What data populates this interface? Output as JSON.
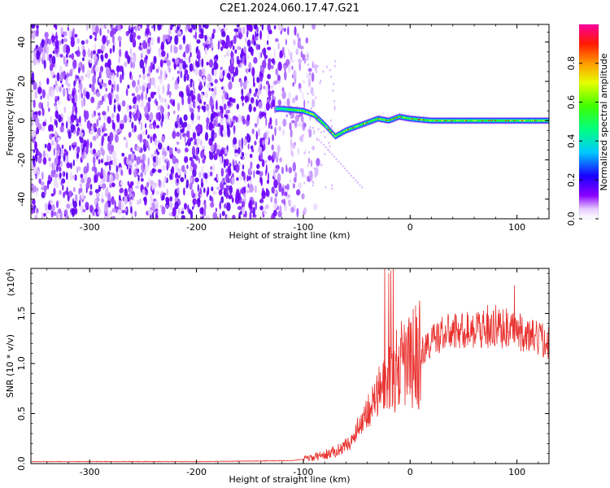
{
  "title": "C2E1.2024.060.17.47.G21",
  "colors": {
    "line": "#e8322f",
    "frame": "#000000",
    "background": "#ffffff"
  },
  "chart_data": [
    {
      "id": "spectrogram",
      "type": "heatmap",
      "xlabel": "Height of straight line (km)",
      "ylabel": "Frequency (Hz)",
      "xlim": [
        -355,
        130
      ],
      "ylim": [
        -50,
        49
      ],
      "xticks": [
        -300,
        -200,
        -100,
        0,
        100
      ],
      "yticks": [
        -40,
        -20,
        0,
        20,
        40
      ],
      "colorbar": {
        "label": "Normalized spectral amplitude",
        "range": [
          0,
          1
        ],
        "ticks": [
          "0.0",
          "0.2",
          "0.4",
          "0.6",
          "0.8"
        ],
        "tick_values": [
          0,
          0.2,
          0.4,
          0.6,
          0.8
        ],
        "colormap": "rainbow (white-violet-blue-cyan-green-yellow-orange-red-magenta)"
      },
      "trace": {
        "description_points_x": [
          -120,
          -100,
          -90,
          -80,
          -70,
          -60,
          -50,
          -40,
          -30,
          -20,
          -10,
          0,
          20,
          60,
          100,
          130
        ],
        "description_points_y": [
          6,
          5,
          3,
          -2,
          -8,
          -5,
          -3,
          -1,
          1,
          0,
          2,
          1,
          0,
          0,
          0,
          0
        ]
      }
    },
    {
      "id": "snr",
      "type": "line",
      "xlabel": "Height of straight line (km)",
      "ylabel": "SNR (10 * v/v)",
      "multiplier_label": "(x10",
      "multiplier_exp": "4",
      "multiplier_close": ")",
      "xlim": [
        -355,
        130
      ],
      "ylim": [
        0,
        1.95
      ],
      "xticks": [
        -300,
        -200,
        -100,
        0,
        100
      ],
      "yticks": [
        0,
        0.5,
        1.0,
        1.5
      ],
      "ytick_labels": [
        "0.0",
        "0.5",
        "1.0",
        "1.5"
      ],
      "envelope_x": [
        -355,
        -200,
        -110,
        -90,
        -70,
        -55,
        -45,
        -35,
        -25,
        -15,
        -5,
        0,
        10,
        20,
        30,
        40,
        60,
        80,
        100,
        110,
        130
      ],
      "envelope_y": [
        0.02,
        0.02,
        0.03,
        0.06,
        0.12,
        0.22,
        0.45,
        0.6,
        0.78,
        0.9,
        1.0,
        1.02,
        1.1,
        1.22,
        1.3,
        1.32,
        1.34,
        1.35,
        1.33,
        1.27,
        1.22
      ]
    }
  ]
}
